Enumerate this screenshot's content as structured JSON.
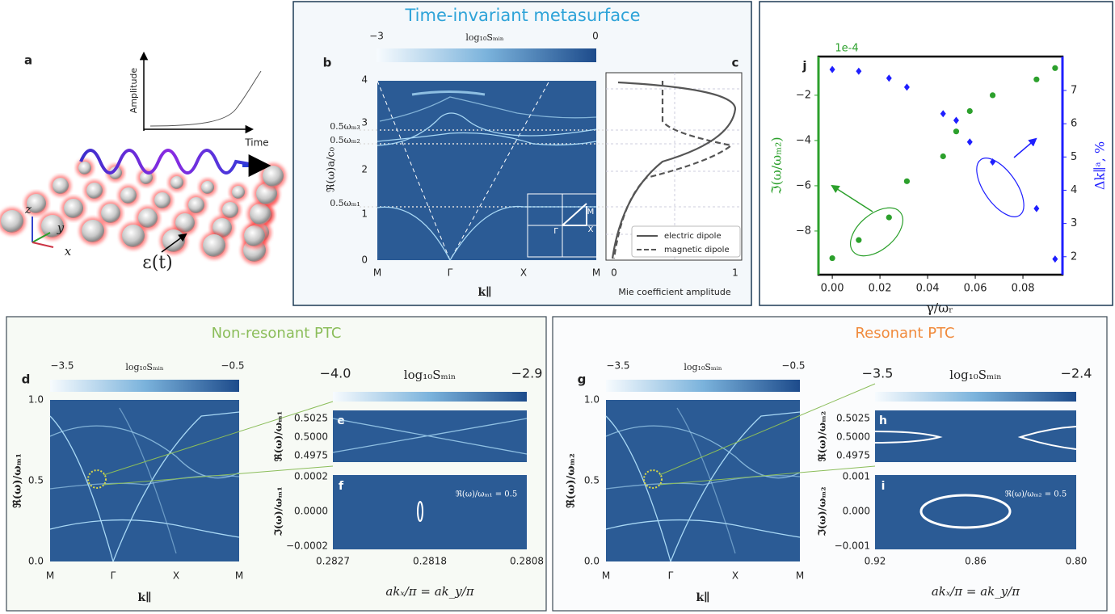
{
  "panel_a": {
    "label": "a",
    "amplitude": "Amplitude",
    "time": "Time",
    "axis_z": "z",
    "axis_y": "y",
    "axis_x": "x",
    "epsilon": "ε(t)"
  },
  "panel_b": {
    "title": "Time-invariant metasurface",
    "label": "b",
    "colorbar": [
      "−3",
      "log₁₀Sₘᵢₙ",
      "0"
    ],
    "y_label": "ℜ(ω)a/c₀",
    "yticks": [
      "0",
      "1",
      "2",
      "3",
      "4"
    ],
    "mode_labels": [
      "0.5ωₘ₃",
      "0.5ωₘ₂",
      "0.5ωₘ₁"
    ],
    "xticks": [
      "M",
      "Γ",
      "X",
      "M"
    ],
    "x_label": "k∥",
    "inset": [
      "M",
      "Γ",
      "X"
    ]
  },
  "panel_c": {
    "label": "c",
    "legend": [
      "electric dipole",
      "magnetic dipole"
    ],
    "xticks": [
      "0",
      "1"
    ],
    "x_label": "Mie coefficient amplitude"
  },
  "non_resonant": {
    "title": "Non-resonant PTC",
    "d": {
      "label": "d",
      "colorbar": [
        "−3.5",
        "log₁₀Sₘᵢₙ",
        "−0.5"
      ],
      "y_label": "ℜ(ω)/ωₘ₁",
      "yticks": [
        "1.0",
        "0.5",
        "0.0"
      ],
      "xticks": [
        "M",
        "Γ",
        "X",
        "M"
      ],
      "x_label": "k∥"
    },
    "e": {
      "label": "e",
      "colorbar": [
        "−4.0",
        "log₁₀Sₘᵢₙ",
        "−2.9"
      ],
      "y_label": "ℜ(ω)/ωₘ₁",
      "yticks": [
        "0.5025",
        "0.5000",
        "0.4975"
      ]
    },
    "f": {
      "label": "f",
      "y_label": "ℑ(ω)/ωₘ₁",
      "yticks": [
        "0.0002",
        "0.0000",
        "−0.0002"
      ],
      "xticks": [
        "0.2827",
        "0.2818",
        "0.2808"
      ],
      "x_label": "akₓ/π = ak_y/π",
      "annotation": "ℜ(ω)/ωₘ₁ = 0.5"
    }
  },
  "resonant": {
    "title": "Resonant PTC",
    "g": {
      "label": "g",
      "colorbar": [
        "−3.5",
        "log₁₀Sₘᵢₙ",
        "−0.5"
      ],
      "y_label": "ℜ(ω)/ωₘ₂",
      "yticks": [
        "1.0",
        "0.5",
        "0.0"
      ],
      "xticks": [
        "M",
        "Γ",
        "X",
        "M"
      ],
      "x_label": "k∥"
    },
    "h": {
      "label": "h",
      "colorbar": [
        "−3.5",
        "log₁₀Sₘᵢₙ",
        "−2.4"
      ],
      "y_label": "ℜ(ω)/ωₘ₂",
      "yticks": [
        "0.5025",
        "0.5000",
        "0.4975"
      ]
    },
    "i": {
      "label": "i",
      "y_label": "ℑ(ω)/ωₘ₂",
      "yticks": [
        "0.001",
        "0.000",
        "−0.001"
      ],
      "xticks": [
        "0.92",
        "0.86",
        "0.80"
      ],
      "x_label": "akₓ/π = ak_y/π",
      "annotation": "ℜ(ω)/ωₘ₂ = 0.5"
    }
  },
  "panel_j": {
    "label": "j"
  },
  "chart_data": {
    "type": "scatter",
    "x": [
      0,
      0.0111,
      0.0238,
      0.0313,
      0.0465,
      0.052,
      0.0577,
      0.0673,
      0.0857,
      0.0935
    ],
    "series": [
      {
        "color": "#2ca02c",
        "values": [
          -9.2,
          -8.4,
          -7.4,
          -5.8,
          -4.7,
          -3.6,
          -2.7,
          -2.0,
          -1.3,
          -0.8
        ]
      },
      {
        "color": "#1f1fff",
        "axis": "y2",
        "values": [
          7.63,
          7.58,
          7.37,
          7.1,
          6.3,
          6.1,
          5.45,
          4.85,
          3.45,
          1.93
        ]
      }
    ],
    "xlim": [
      -0.0058,
      0.0966
    ],
    "ylim": [
      -9.93,
      -0.29
    ],
    "y2lim": [
      1.46,
      8.02
    ],
    "xticks": [
      {
        "value": 0,
        "label": "0.00"
      },
      0.02,
      0.04,
      0.06,
      0.08
    ],
    "yticks": [
      {
        "value": -8,
        "label": "−8"
      },
      {
        "value": -6,
        "label": "−6"
      },
      {
        "value": -4,
        "label": "−4"
      },
      {
        "value": -2,
        "label": "−2"
      }
    ],
    "y2ticks": [
      2,
      3,
      4,
      5,
      6,
      7
    ],
    "y_offset_label": "1e-4",
    "y_label": "ℑ(ω/ωₘ₂)",
    "y2_label": "Δk∥ᵃ, %",
    "x_label": "γ/ωᵣ"
  }
}
